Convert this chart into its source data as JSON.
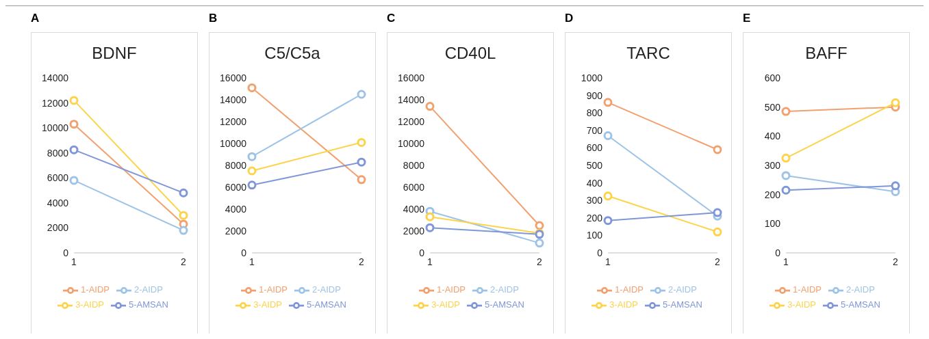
{
  "chart_data": [
    {
      "type": "line",
      "title": "BDNF",
      "annotations": [
        "A"
      ],
      "categories": [
        "1",
        "2"
      ],
      "ylim": [
        0,
        14000
      ],
      "yticks": [
        0,
        2000,
        4000,
        6000,
        8000,
        10000,
        12000,
        14000
      ],
      "marker": "circle",
      "legend": "bottom",
      "series": [
        {
          "name": "1-AIDP",
          "color": "#f2a06e",
          "values": [
            10300,
            2300
          ]
        },
        {
          "name": "2-AIDP",
          "color": "#9dc3e6",
          "values": [
            5800,
            1800
          ]
        },
        {
          "name": "3-AIDP",
          "color": "#fdd34a",
          "values": [
            12200,
            3000
          ]
        },
        {
          "name": "5-AMSAN",
          "color": "#7f96d8",
          "values": [
            8250,
            4800
          ]
        }
      ]
    },
    {
      "type": "line",
      "title": "C5/C5a",
      "annotations": [
        "B"
      ],
      "categories": [
        "1",
        "2"
      ],
      "ylim": [
        0,
        16000
      ],
      "yticks": [
        0,
        2000,
        4000,
        6000,
        8000,
        10000,
        12000,
        14000,
        16000
      ],
      "marker": "circle",
      "legend": "bottom",
      "series": [
        {
          "name": "1-AIDP",
          "color": "#f2a06e",
          "values": [
            15100,
            6700
          ]
        },
        {
          "name": "2-AIDP",
          "color": "#9dc3e6",
          "values": [
            8800,
            14500
          ]
        },
        {
          "name": "3-AIDP",
          "color": "#fdd34a",
          "values": [
            7500,
            10100
          ]
        },
        {
          "name": "5-AMSAN",
          "color": "#7f96d8",
          "values": [
            6200,
            8300
          ]
        }
      ]
    },
    {
      "type": "line",
      "title": "CD40L",
      "annotations": [
        "C"
      ],
      "categories": [
        "1",
        "2"
      ],
      "ylim": [
        0,
        16000
      ],
      "yticks": [
        0,
        2000,
        4000,
        6000,
        8000,
        10000,
        12000,
        14000,
        16000
      ],
      "marker": "circle",
      "legend": "bottom",
      "series": [
        {
          "name": "1-AIDP",
          "color": "#f2a06e",
          "values": [
            13400,
            2500
          ]
        },
        {
          "name": "2-AIDP",
          "color": "#9dc3e6",
          "values": [
            3800,
            900
          ]
        },
        {
          "name": "3-AIDP",
          "color": "#fdd34a",
          "values": [
            3300,
            1800
          ]
        },
        {
          "name": "5-AMSAN",
          "color": "#7f96d8",
          "values": [
            2300,
            1700
          ]
        }
      ]
    },
    {
      "type": "line",
      "title": "TARC",
      "annotations": [
        "D"
      ],
      "categories": [
        "1",
        "2"
      ],
      "ylim": [
        0,
        1000
      ],
      "yticks": [
        0,
        100,
        200,
        300,
        400,
        500,
        600,
        700,
        800,
        900,
        1000
      ],
      "marker": "circle",
      "legend": "bottom",
      "series": [
        {
          "name": "1-AIDP",
          "color": "#f2a06e",
          "values": [
            860,
            590
          ]
        },
        {
          "name": "2-AIDP",
          "color": "#9dc3e6",
          "values": [
            670,
            210
          ]
        },
        {
          "name": "3-AIDP",
          "color": "#fdd34a",
          "values": [
            325,
            120
          ]
        },
        {
          "name": "5-AMSAN",
          "color": "#7f96d8",
          "values": [
            185,
            230
          ]
        }
      ]
    },
    {
      "type": "line",
      "title": "BAFF",
      "annotations": [
        "E"
      ],
      "categories": [
        "1",
        "2"
      ],
      "ylim": [
        0,
        600
      ],
      "yticks": [
        0,
        100,
        200,
        300,
        400,
        500,
        600
      ],
      "marker": "circle",
      "legend": "bottom",
      "series": [
        {
          "name": "1-AIDP",
          "color": "#f2a06e",
          "values": [
            485,
            500
          ]
        },
        {
          "name": "2-AIDP",
          "color": "#9dc3e6",
          "values": [
            265,
            210
          ]
        },
        {
          "name": "3-AIDP",
          "color": "#fdd34a",
          "values": [
            325,
            515
          ]
        },
        {
          "name": "5-AMSAN",
          "color": "#7f96d8",
          "values": [
            215,
            230
          ]
        }
      ]
    }
  ]
}
